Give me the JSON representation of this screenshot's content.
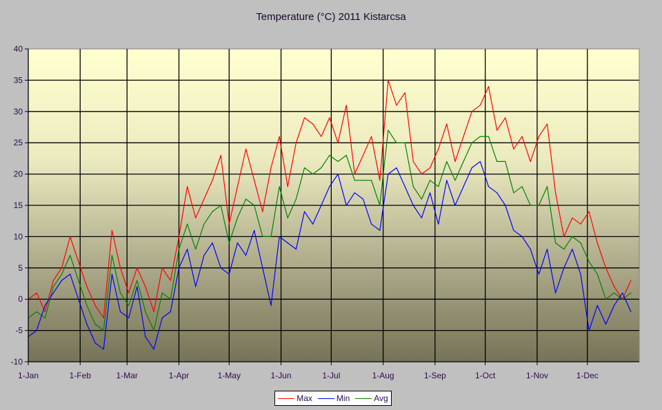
{
  "chart_data": {
    "type": "line",
    "title": "Temperature (°C) 2011 Kistarcsa",
    "xlabel": "",
    "ylabel": "",
    "ylim": [
      -10,
      40
    ],
    "yticks": [
      "40",
      "35",
      "30",
      "25",
      "20",
      "15",
      "10",
      "5",
      "0",
      "-5",
      "-10"
    ],
    "ytick_values": [
      40,
      35,
      30,
      25,
      20,
      15,
      10,
      5,
      0,
      -5,
      -10
    ],
    "xlim_days": [
      0,
      365
    ],
    "xticks": [
      "1-Jan",
      "1-Feb",
      "1-Mar",
      "1-Apr",
      "1-May",
      "1-Jun",
      "1-Jul",
      "1-Aug",
      "1-Sep",
      "1-Oct",
      "1-Nov",
      "1-Dec"
    ],
    "xtick_days": [
      0,
      31,
      59,
      90,
      120,
      151,
      181,
      212,
      243,
      273,
      304,
      334
    ],
    "grid": true,
    "legend_position": "bottom-center",
    "x_day_step": 5,
    "series": [
      {
        "name": "Max",
        "color": "#ff0000",
        "values": [
          0,
          1,
          -2,
          3,
          5,
          10,
          6,
          2,
          -1,
          -3,
          11,
          5,
          1,
          5,
          2,
          -2,
          5,
          3,
          10,
          18,
          13,
          16,
          19,
          23,
          12,
          18,
          24,
          19,
          14,
          21,
          26,
          18,
          25,
          29,
          28,
          26,
          29,
          25,
          31,
          20,
          23,
          26,
          19,
          35,
          31,
          33,
          22,
          20,
          21,
          24,
          28,
          22,
          26,
          30,
          31,
          34,
          27,
          29,
          24,
          26,
          22,
          26,
          28,
          17,
          10,
          13,
          12,
          14,
          9,
          5,
          2,
          0,
          3
        ]
      },
      {
        "name": "Min",
        "color": "#0000ff",
        "values": [
          -6,
          -5,
          -1,
          1,
          3,
          4,
          0,
          -4,
          -7,
          -8,
          4,
          -2,
          -3,
          2,
          -6,
          -8,
          -3,
          -2,
          5,
          8,
          2,
          7,
          9,
          5,
          4,
          9,
          7,
          11,
          5,
          -1,
          10,
          9,
          8,
          14,
          12,
          15,
          18,
          20,
          15,
          17,
          16,
          12,
          11,
          20,
          21,
          18,
          15,
          13,
          17,
          12,
          19,
          15,
          18,
          21,
          22,
          18,
          17,
          15,
          11,
          10,
          8,
          4,
          8,
          1,
          5,
          8,
          4,
          -5,
          -1,
          -4,
          -1,
          1,
          -2
        ]
      },
      {
        "name": "Avg",
        "color": "#008000",
        "values": [
          -3,
          -2,
          -3,
          2,
          4,
          7,
          3,
          -1,
          -4,
          -5,
          7,
          1,
          -1,
          3,
          -2,
          -5,
          1,
          0,
          8,
          12,
          8,
          12,
          14,
          15,
          9,
          13,
          16,
          15,
          10,
          10,
          18,
          13,
          16,
          21,
          20,
          21,
          23,
          22,
          23,
          19,
          19,
          19,
          15,
          27,
          25,
          25,
          18,
          16,
          19,
          18,
          22,
          19,
          22,
          25,
          26,
          26,
          22,
          22,
          17,
          18,
          15,
          15,
          18,
          9,
          8,
          10,
          9,
          6,
          4,
          0,
          1,
          0,
          1
        ]
      }
    ]
  }
}
